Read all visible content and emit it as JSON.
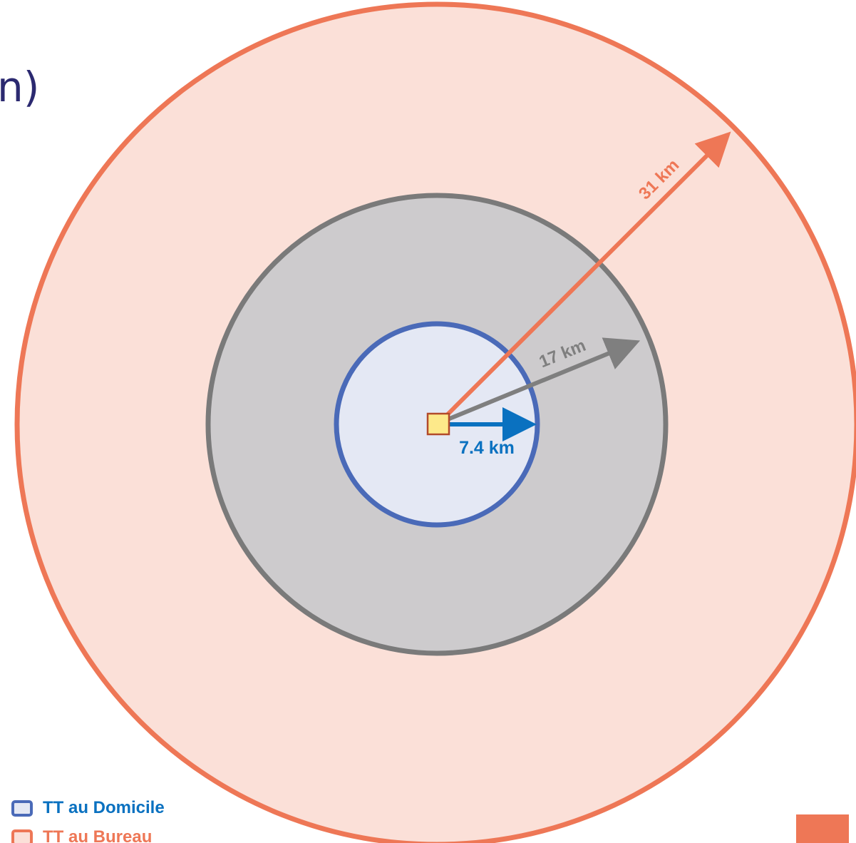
{
  "title_fragment": "n)",
  "center_marker": {
    "fill": "#fde98a",
    "stroke": "#b24a2a"
  },
  "zones": [
    {
      "id": "bureau",
      "radius_km": 31,
      "label": "31 km",
      "fill": "#fbe0d8",
      "stroke": "#ee7756",
      "text_color": "#ee7756",
      "arrow_angle_deg": -45
    },
    {
      "id": "middle",
      "radius_km": 17,
      "label": "17 km",
      "fill": "#cdcbcd",
      "stroke": "#7a7a7a",
      "text_color": "#7f7f7f",
      "arrow_angle_deg": -22
    },
    {
      "id": "domicile",
      "radius_km": 7.4,
      "label": "7.4 km",
      "fill": "#e4e8f4",
      "stroke": "#4a6ab8",
      "text_color": "#0a71c0",
      "arrow_color": "#0a71c0",
      "arrow_angle_deg": 0
    }
  ],
  "legend": [
    {
      "label": "TT au Domicile",
      "color": "#0a71c0",
      "swatch_fill": "#e4e8f4",
      "swatch_stroke": "#4a6ab8"
    },
    {
      "label": "TT au Bureau",
      "color": "#ee7756",
      "swatch_fill": "#fbe0d8",
      "swatch_stroke": "#ee7756"
    }
  ],
  "corner_box_color": "#ee7756"
}
